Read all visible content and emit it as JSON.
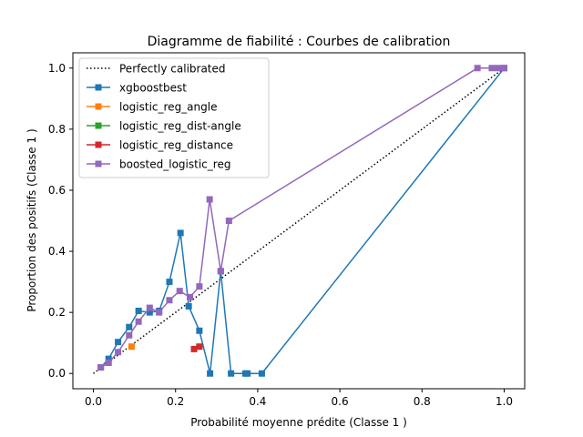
{
  "chart_data": {
    "type": "line",
    "title": "Diagramme de fiabilité : Courbes de calibration",
    "xlabel": "Probabilité moyenne prédite (Classe 1 )",
    "ylabel": "Proportion des positifs (Classe 1 )",
    "xlim": [
      -0.05,
      1.05
    ],
    "ylim": [
      -0.05,
      1.05
    ],
    "xticks": [
      0.0,
      0.2,
      0.4,
      0.6,
      0.8,
      1.0
    ],
    "yticks": [
      0.0,
      0.2,
      0.4,
      0.6,
      0.8,
      1.0
    ],
    "tick_labels": [
      "0.0",
      "0.2",
      "0.4",
      "0.6",
      "0.8",
      "1.0"
    ],
    "grid": false,
    "legend_position": "top-left",
    "series": [
      {
        "name": "Perfectly calibrated",
        "color": "#000000",
        "style": "dotted",
        "marker": "none",
        "x": [
          0.0,
          1.0
        ],
        "y": [
          0.0,
          1.0
        ]
      },
      {
        "name": "xgboostbest",
        "color": "#1f77b4",
        "style": "solid",
        "marker": "square",
        "x": [
          0.018,
          0.037,
          0.06,
          0.087,
          0.11,
          0.137,
          0.16,
          0.185,
          0.212,
          0.232,
          0.258,
          0.284,
          0.31,
          0.335,
          0.37,
          0.375,
          0.41,
          1.0
        ],
        "y": [
          0.02,
          0.048,
          0.103,
          0.152,
          0.205,
          0.2,
          0.205,
          0.3,
          0.46,
          0.22,
          0.14,
          0.0,
          0.335,
          0.0,
          0.0,
          0.0,
          0.0,
          1.0
        ]
      },
      {
        "name": "logistic_reg_angle",
        "color": "#ff7f0e",
        "style": "solid",
        "marker": "square",
        "x": [
          0.093
        ],
        "y": [
          0.088
        ]
      },
      {
        "name": "logistic_reg_dist-angle",
        "color": "#2ca02c",
        "style": "solid",
        "marker": "square",
        "x": [],
        "y": []
      },
      {
        "name": "logistic_reg_distance",
        "color": "#d62728",
        "style": "solid",
        "marker": "square",
        "x": [
          0.245,
          0.258
        ],
        "y": [
          0.08,
          0.088
        ]
      },
      {
        "name": "boosted_logistic_reg",
        "color": "#9467bd",
        "style": "solid",
        "marker": "square",
        "x": [
          0.018,
          0.037,
          0.06,
          0.087,
          0.11,
          0.137,
          0.16,
          0.185,
          0.21,
          0.235,
          0.258,
          0.283,
          0.31,
          0.33,
          0.935,
          0.97,
          0.985,
          1.0
        ],
        "y": [
          0.02,
          0.035,
          0.07,
          0.125,
          0.17,
          0.215,
          0.2,
          0.24,
          0.27,
          0.25,
          0.285,
          0.57,
          0.335,
          0.5,
          1.0,
          1.0,
          1.0,
          1.0
        ]
      }
    ]
  }
}
